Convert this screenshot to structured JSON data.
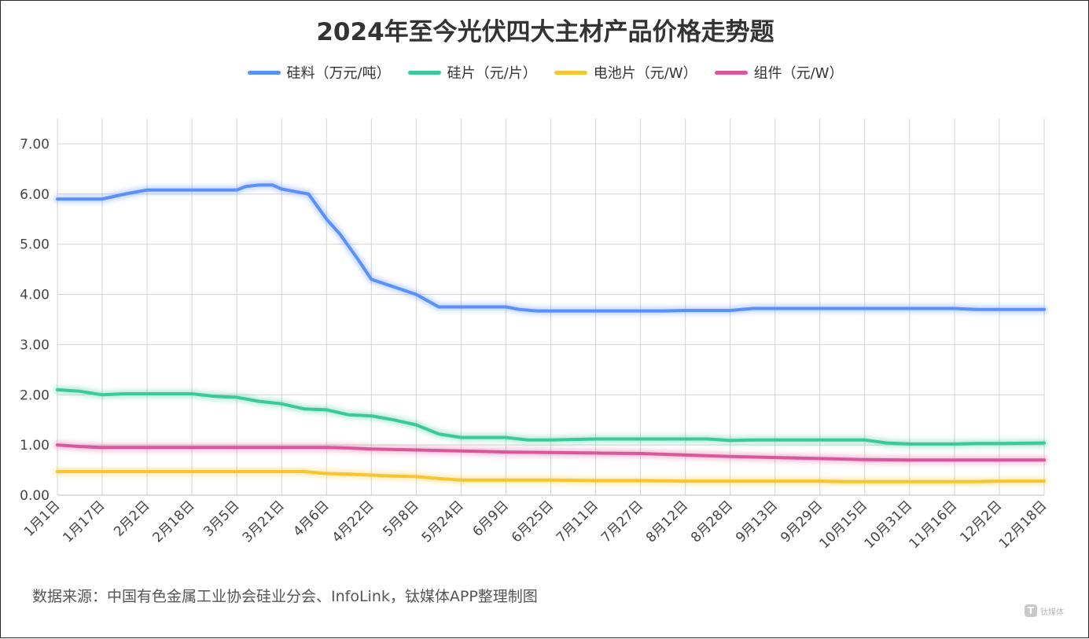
{
  "chart_data": {
    "type": "line",
    "title": "2024年至今光伏四大主材产品价格走势题",
    "xlabel": "",
    "ylabel": "",
    "ylim": [
      0,
      7
    ],
    "yticks": [
      "0.00",
      "1.00",
      "2.00",
      "3.00",
      "4.00",
      "5.00",
      "6.00",
      "7.00"
    ],
    "grid": true,
    "legend_position": "top-center",
    "x": [
      "1月1日",
      "1月17日",
      "2月2日",
      "2月18日",
      "3月5日",
      "3月21日",
      "4月6日",
      "4月22日",
      "5月8日",
      "5月24日",
      "6月9日",
      "6月25日",
      "7月11日",
      "7月27日",
      "8月12日",
      "8月28日",
      "9月13日",
      "9月29日",
      "10月15日",
      "10月31日",
      "11月16日",
      "12月2日",
      "12月18日"
    ],
    "series": [
      {
        "name": "硅料（万元/吨）",
        "color": "#5b8ff9",
        "points": [
          [
            0,
            5.9
          ],
          [
            1,
            5.9
          ],
          [
            1.5,
            6.0
          ],
          [
            2,
            6.08
          ],
          [
            2.5,
            6.08
          ],
          [
            3,
            6.08
          ],
          [
            3.5,
            6.08
          ],
          [
            4,
            6.08
          ],
          [
            4.2,
            6.15
          ],
          [
            4.5,
            6.18
          ],
          [
            4.8,
            6.18
          ],
          [
            5,
            6.1
          ],
          [
            5.3,
            6.05
          ],
          [
            5.6,
            6.0
          ],
          [
            6,
            5.5
          ],
          [
            6.3,
            5.2
          ],
          [
            6.7,
            4.7
          ],
          [
            7,
            4.3
          ],
          [
            7.5,
            4.15
          ],
          [
            8,
            4.0
          ],
          [
            8.5,
            3.75
          ],
          [
            9,
            3.75
          ],
          [
            9.5,
            3.75
          ],
          [
            10,
            3.75
          ],
          [
            10.3,
            3.7
          ],
          [
            10.7,
            3.67
          ],
          [
            11,
            3.67
          ],
          [
            12,
            3.67
          ],
          [
            13,
            3.67
          ],
          [
            13.5,
            3.67
          ],
          [
            14,
            3.68
          ],
          [
            15,
            3.68
          ],
          [
            15.5,
            3.72
          ],
          [
            16,
            3.72
          ],
          [
            17,
            3.72
          ],
          [
            18,
            3.72
          ],
          [
            19,
            3.72
          ],
          [
            20,
            3.72
          ],
          [
            20.5,
            3.7
          ],
          [
            21,
            3.7
          ],
          [
            22,
            3.7
          ]
        ]
      },
      {
        "name": "硅片（元/片）",
        "color": "#3bc99a",
        "points": [
          [
            0,
            2.1
          ],
          [
            0.5,
            2.07
          ],
          [
            1,
            2.0
          ],
          [
            1.5,
            2.02
          ],
          [
            2,
            2.02
          ],
          [
            3,
            2.02
          ],
          [
            3.5,
            1.97
          ],
          [
            4,
            1.95
          ],
          [
            4.5,
            1.87
          ],
          [
            5,
            1.82
          ],
          [
            5.5,
            1.72
          ],
          [
            6,
            1.7
          ],
          [
            6.5,
            1.6
          ],
          [
            7,
            1.58
          ],
          [
            7.5,
            1.5
          ],
          [
            8,
            1.4
          ],
          [
            8.5,
            1.22
          ],
          [
            9,
            1.15
          ],
          [
            9.5,
            1.15
          ],
          [
            10,
            1.15
          ],
          [
            10.5,
            1.1
          ],
          [
            11,
            1.1
          ],
          [
            12,
            1.12
          ],
          [
            13,
            1.12
          ],
          [
            14,
            1.12
          ],
          [
            14.5,
            1.12
          ],
          [
            15,
            1.09
          ],
          [
            15.5,
            1.1
          ],
          [
            16,
            1.1
          ],
          [
            17,
            1.1
          ],
          [
            18,
            1.1
          ],
          [
            18.5,
            1.04
          ],
          [
            19,
            1.02
          ],
          [
            20,
            1.02
          ],
          [
            20.5,
            1.03
          ],
          [
            21,
            1.03
          ],
          [
            22,
            1.04
          ]
        ]
      },
      {
        "name": "电池片（元/W）",
        "color": "#f6c531",
        "points": [
          [
            0,
            0.47
          ],
          [
            1,
            0.47
          ],
          [
            2,
            0.47
          ],
          [
            3,
            0.47
          ],
          [
            4,
            0.47
          ],
          [
            5,
            0.47
          ],
          [
            5.5,
            0.47
          ],
          [
            6,
            0.43
          ],
          [
            6.5,
            0.42
          ],
          [
            7,
            0.4
          ],
          [
            7.5,
            0.38
          ],
          [
            8,
            0.37
          ],
          [
            8.5,
            0.33
          ],
          [
            9,
            0.3
          ],
          [
            10,
            0.3
          ],
          [
            11,
            0.3
          ],
          [
            12,
            0.29
          ],
          [
            13,
            0.29
          ],
          [
            14,
            0.28
          ],
          [
            15,
            0.28
          ],
          [
            16,
            0.28
          ],
          [
            17,
            0.28
          ],
          [
            17.5,
            0.27
          ],
          [
            18,
            0.27
          ],
          [
            19,
            0.27
          ],
          [
            20,
            0.27
          ],
          [
            20.5,
            0.27
          ],
          [
            21,
            0.28
          ],
          [
            22,
            0.28
          ]
        ]
      },
      {
        "name": "组件（元/W）",
        "color": "#d9589b",
        "points": [
          [
            0,
            1.0
          ],
          [
            0.5,
            0.97
          ],
          [
            1,
            0.95
          ],
          [
            2,
            0.95
          ],
          [
            3,
            0.95
          ],
          [
            4,
            0.95
          ],
          [
            5,
            0.95
          ],
          [
            6,
            0.95
          ],
          [
            6.5,
            0.94
          ],
          [
            7,
            0.92
          ],
          [
            8,
            0.9
          ],
          [
            9,
            0.88
          ],
          [
            10,
            0.86
          ],
          [
            11,
            0.85
          ],
          [
            12,
            0.84
          ],
          [
            13,
            0.83
          ],
          [
            14,
            0.8
          ],
          [
            15,
            0.77
          ],
          [
            16,
            0.75
          ],
          [
            17,
            0.73
          ],
          [
            18,
            0.71
          ],
          [
            19,
            0.7
          ],
          [
            20,
            0.7
          ],
          [
            21,
            0.7
          ],
          [
            22,
            0.7
          ]
        ]
      }
    ]
  },
  "source_text": "数据来源：中国有色金属工业协会硅业分会、InfoLink，钛媒体APP整理制图",
  "watermark": {
    "logo": "T",
    "text": "钛媒体"
  }
}
